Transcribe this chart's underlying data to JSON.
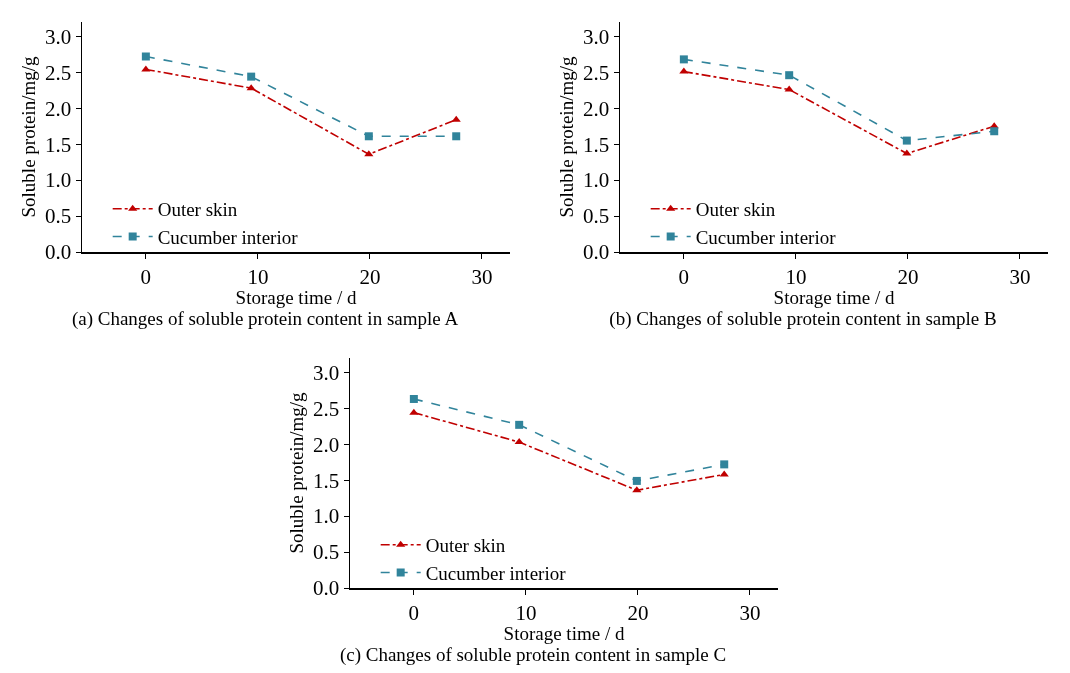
{
  "chart_data": [
    {
      "type": "line",
      "title": "(a) Changes of soluble protein content in sample A",
      "xlabel": "Storage time / d",
      "ylabel": "Soluble protein/mg/g",
      "xlim": [
        -5.7,
        32.5
      ],
      "xticks": [
        0,
        10,
        20,
        30
      ],
      "ylim": [
        0,
        3.2
      ],
      "yticks": [
        {
          "value": 0,
          "label": "0.0"
        },
        {
          "value": 0.5,
          "label": "0.5"
        },
        {
          "value": 1,
          "label": "1.0"
        },
        {
          "value": 1.5,
          "label": "1.5"
        },
        {
          "value": 2,
          "label": "2.0"
        },
        {
          "value": 2.5,
          "label": "2.5"
        },
        {
          "value": 3,
          "label": "3.0"
        }
      ],
      "grid": false,
      "legend": "bottom left",
      "series": [
        {
          "name": "Outer skin",
          "color": "#c00000",
          "marker": "triangle",
          "line_style": "dashdot",
          "x": [
            0,
            9.4,
            19.9,
            27.7
          ],
          "values": [
            2.54,
            2.28,
            1.36,
            1.84
          ]
        },
        {
          "name": "Cucumber interior",
          "color": "#31849b",
          "marker": "square",
          "line_style": "dashed",
          "x": [
            0,
            9.4,
            19.9,
            27.7
          ],
          "values": [
            2.72,
            2.44,
            1.61,
            1.61
          ]
        }
      ]
    },
    {
      "type": "line",
      "title": "(b) Changes of soluble protein content in sample B",
      "xlabel": "Storage time / d",
      "ylabel": "Soluble protein/mg/g",
      "xlim": [
        -5.7,
        32.5
      ],
      "xticks": [
        0,
        10,
        20,
        30
      ],
      "ylim": [
        0,
        3.2
      ],
      "yticks": [
        {
          "value": 0,
          "label": "0.0"
        },
        {
          "value": 0.5,
          "label": "0.5"
        },
        {
          "value": 1,
          "label": "1.0"
        },
        {
          "value": 1.5,
          "label": "1.5"
        },
        {
          "value": 2,
          "label": "2.0"
        },
        {
          "value": 2.5,
          "label": "2.5"
        },
        {
          "value": 3,
          "label": "3.0"
        }
      ],
      "grid": false,
      "legend": "bottom left",
      "series": [
        {
          "name": "Outer skin",
          "color": "#c00000",
          "marker": "triangle",
          "line_style": "dashdot",
          "x": [
            0,
            9.4,
            19.9,
            27.7
          ],
          "values": [
            2.51,
            2.26,
            1.37,
            1.75
          ]
        },
        {
          "name": "Cucumber interior",
          "color": "#31849b",
          "marker": "square",
          "line_style": "dashed",
          "x": [
            0,
            9.4,
            19.9,
            27.7
          ],
          "values": [
            2.68,
            2.46,
            1.55,
            1.68
          ]
        }
      ]
    },
    {
      "type": "line",
      "title": "(c) Changes of soluble protein content in sample C",
      "xlabel": "Storage time / d",
      "ylabel": "Soluble protein/mg/g",
      "xlim": [
        -5.7,
        32.5
      ],
      "xticks": [
        0,
        10,
        20,
        30
      ],
      "ylim": [
        0,
        3.2
      ],
      "yticks": [
        {
          "value": 0,
          "label": "0.0"
        },
        {
          "value": 0.5,
          "label": "0.5"
        },
        {
          "value": 1,
          "label": "1.0"
        },
        {
          "value": 1.5,
          "label": "1.5"
        },
        {
          "value": 2,
          "label": "2.0"
        },
        {
          "value": 2.5,
          "label": "2.5"
        },
        {
          "value": 3,
          "label": "3.0"
        }
      ],
      "grid": false,
      "legend": "bottom left",
      "series": [
        {
          "name": "Outer skin",
          "color": "#c00000",
          "marker": "triangle",
          "line_style": "dashdot",
          "x": [
            0,
            9.4,
            19.9,
            27.7
          ],
          "values": [
            2.44,
            2.03,
            1.36,
            1.58
          ]
        },
        {
          "name": "Cucumber interior",
          "color": "#31849b",
          "marker": "square",
          "line_style": "dashed",
          "x": [
            0,
            9.4,
            19.9,
            27.7
          ],
          "values": [
            2.63,
            2.27,
            1.49,
            1.72
          ]
        }
      ]
    }
  ]
}
